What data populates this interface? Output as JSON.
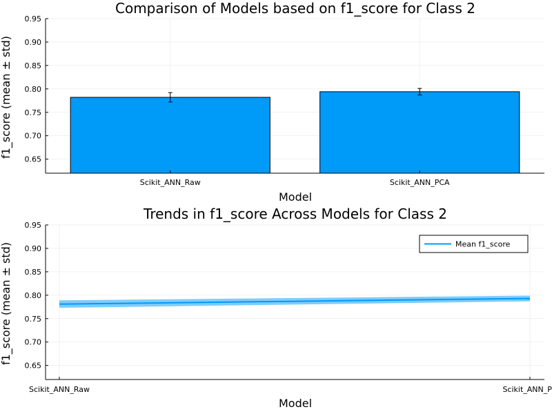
{
  "chart_data": [
    {
      "type": "bar",
      "title": "Comparison of Models based on f1_score for Class 2",
      "xlabel": "Model",
      "ylabel": "f1_score (mean ± std)",
      "categories": [
        "Scikit_ANN_Raw",
        "Scikit_ANN_PCA"
      ],
      "values": [
        0.782,
        0.794
      ],
      "errors": [
        0.01,
        0.007
      ],
      "ylim": [
        0.62,
        0.95
      ],
      "yticks": [
        0.65,
        0.7,
        0.75,
        0.8,
        0.85,
        0.9,
        0.95
      ],
      "ytick_labels": [
        "0.65",
        "0.70",
        "0.75",
        "0.80",
        "0.85",
        "0.90",
        "0.95"
      ],
      "color": "#009af9",
      "grid": true
    },
    {
      "type": "line",
      "title": "Trends in f1_score Across Models for Class 2",
      "xlabel": "Model",
      "ylabel": "f1_score (mean ± std)",
      "categories": [
        "Scikit_ANN_Raw",
        "Scikit_ANN_PCA"
      ],
      "x_tick_labels": [
        "Scikit_ANN_Raw",
        "Scikit_ANN_PC"
      ],
      "series": [
        {
          "name": "Mean f1_score",
          "values": [
            0.781,
            0.793
          ],
          "std": [
            0.008,
            0.006
          ]
        }
      ],
      "ylim": [
        0.62,
        0.95
      ],
      "yticks": [
        0.65,
        0.7,
        0.75,
        0.8,
        0.85,
        0.9,
        0.95
      ],
      "ytick_labels": [
        "0.65",
        "0.70",
        "0.75",
        "0.80",
        "0.85",
        "0.90",
        "0.95"
      ],
      "color": "#009af9",
      "grid": true,
      "legend_position": "top-right"
    }
  ]
}
